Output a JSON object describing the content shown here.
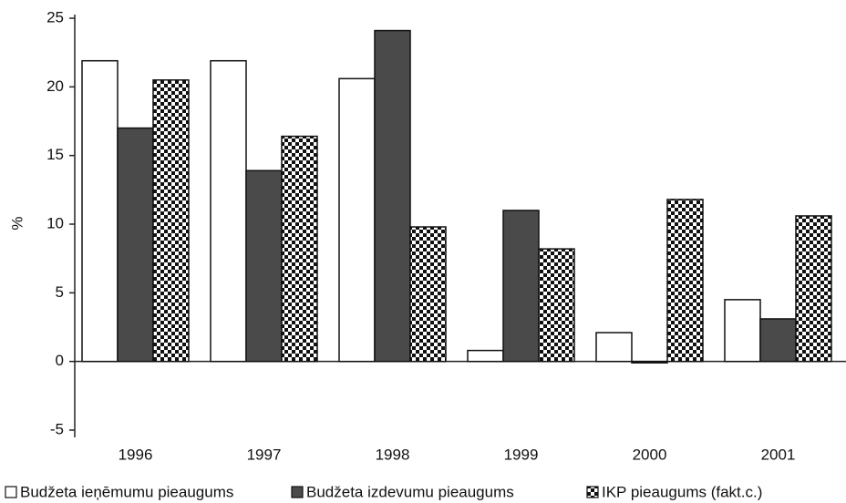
{
  "chart_data": {
    "type": "bar",
    "y_label": "%",
    "categories": [
      "1996",
      "1997",
      "1998",
      "1999",
      "2000",
      "2001"
    ],
    "series": [
      {
        "name": "Budžeta ieņēmumu pieaugums",
        "color": "#ffffff",
        "values": [
          21.9,
          21.9,
          20.6,
          0.8,
          2.1,
          4.5
        ]
      },
      {
        "name": "Budžeta izdevumu pieaugums",
        "color": "#4a4a4a",
        "values": [
          17.0,
          13.9,
          24.1,
          11.0,
          -0.1,
          3.1
        ]
      },
      {
        "name": "IKP pieaugums (fakt.c.)",
        "color": "#111111",
        "hatch": "checker",
        "values": [
          20.5,
          16.4,
          9.8,
          8.2,
          11.8,
          10.6
        ]
      }
    ],
    "ylim": [
      -5,
      25
    ],
    "yticks": [
      -5,
      0,
      5,
      10,
      15,
      20,
      25
    ],
    "legend": "bottom"
  }
}
